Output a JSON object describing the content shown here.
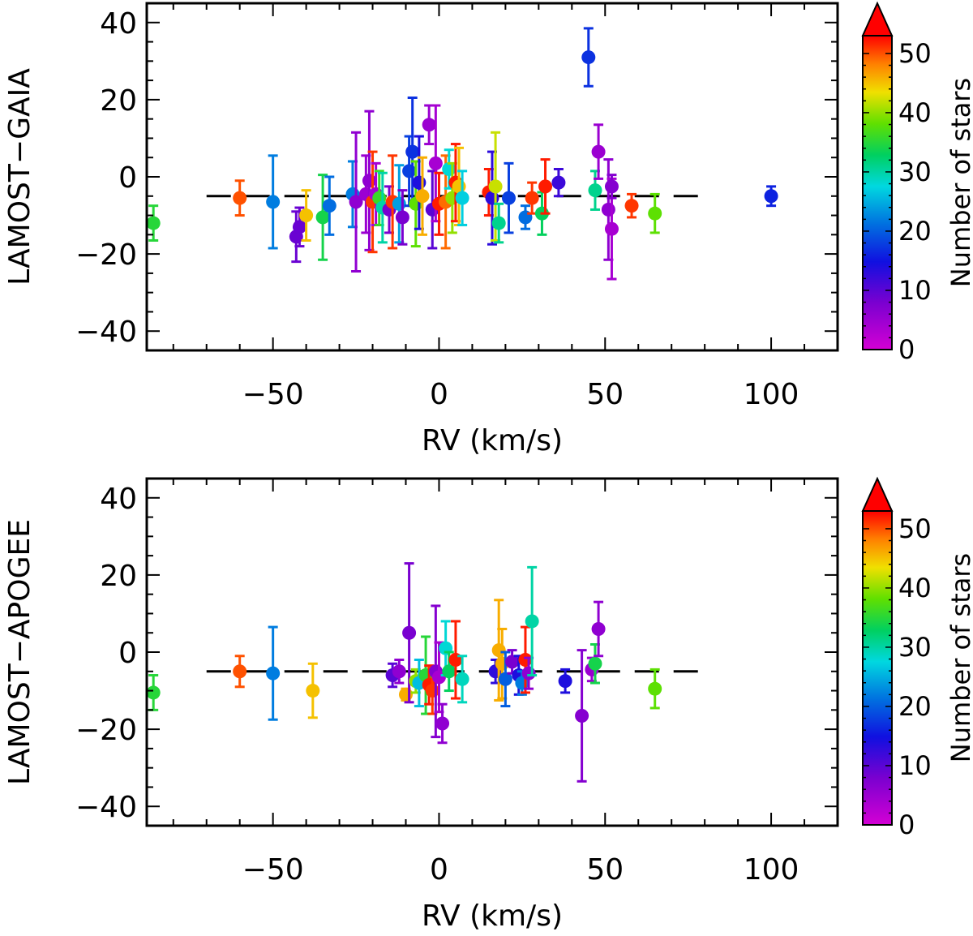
{
  "chart_data": [
    {
      "type": "scatter",
      "xlabel": "RV (km/s)",
      "ylabel": "LAMOST−GAIA",
      "xlim": [
        -88,
        120
      ],
      "ylim": [
        -45,
        45
      ],
      "xticks": [
        -50,
        0,
        50,
        100
      ],
      "xtick_labels": [
        "−50",
        "0",
        "50",
        "100"
      ],
      "yticks": [
        -40,
        -20,
        0,
        20,
        40
      ],
      "ytick_labels": [
        "−40",
        "−20",
        "0",
        "20",
        "40"
      ],
      "reference_line": {
        "y": -5,
        "style": "dashed"
      },
      "colorbar": {
        "label": "Number of stars",
        "range": [
          0,
          53
        ],
        "ticks": [
          0,
          10,
          20,
          30,
          40,
          50
        ],
        "tick_labels": [
          "0",
          "10",
          "20",
          "30",
          "40",
          "50"
        ],
        "extend": "max"
      },
      "points": [
        {
          "x": -86,
          "y": -12,
          "err": 4.5,
          "n": 35
        },
        {
          "x": -60,
          "y": -5.5,
          "err": 4.5,
          "n": 50
        },
        {
          "x": -50,
          "y": -6.5,
          "err": 12,
          "n": 22
        },
        {
          "x": -43,
          "y": -15.5,
          "err": 6.5,
          "n": 9
        },
        {
          "x": -42,
          "y": -13,
          "err": 5,
          "n": 9
        },
        {
          "x": -40,
          "y": -10,
          "err": 6.5,
          "n": 45
        },
        {
          "x": -35,
          "y": -10.5,
          "err": 11,
          "n": 34
        },
        {
          "x": -33,
          "y": -7.5,
          "err": 7.5,
          "n": 21
        },
        {
          "x": -26,
          "y": -4.5,
          "err": 8.5,
          "n": 22
        },
        {
          "x": -25,
          "y": -6.5,
          "err": 18,
          "n": 6
        },
        {
          "x": -22,
          "y": -4.5,
          "err": 10,
          "n": 5
        },
        {
          "x": -21,
          "y": -1,
          "err": 18,
          "n": 6
        },
        {
          "x": -20,
          "y": -6.5,
          "err": 13,
          "n": 51
        },
        {
          "x": -19,
          "y": -4.5,
          "err": 8,
          "n": 4
        },
        {
          "x": -18,
          "y": -5.5,
          "err": 7,
          "n": 36
        },
        {
          "x": -17,
          "y": -8,
          "err": 9,
          "n": 30
        },
        {
          "x": -15,
          "y": -8.5,
          "err": 6,
          "n": 8
        },
        {
          "x": -14,
          "y": -6.5,
          "err": 12,
          "n": 51
        },
        {
          "x": -12,
          "y": -7,
          "err": 10,
          "n": 24
        },
        {
          "x": -11,
          "y": -10.5,
          "err": 7,
          "n": 8
        },
        {
          "x": -9,
          "y": 1.5,
          "err": 9,
          "n": 18
        },
        {
          "x": -8,
          "y": 6.5,
          "err": 14,
          "n": 17
        },
        {
          "x": -7,
          "y": -7,
          "err": 11,
          "n": 38
        },
        {
          "x": -6,
          "y": -1.5,
          "err": 12,
          "n": 14
        },
        {
          "x": -5,
          "y": -5,
          "err": 10,
          "n": 46
        },
        {
          "x": -3,
          "y": 13.5,
          "err": 5,
          "n": 5
        },
        {
          "x": -2,
          "y": -8.5,
          "err": 10,
          "n": 10
        },
        {
          "x": -1,
          "y": 3.5,
          "err": 15,
          "n": 4
        },
        {
          "x": 0,
          "y": -7,
          "err": 8,
          "n": 52
        },
        {
          "x": 2,
          "y": -6.5,
          "err": 12,
          "n": 49
        },
        {
          "x": 3,
          "y": 2,
          "err": 5,
          "n": 28
        },
        {
          "x": 4,
          "y": -5.5,
          "err": 9,
          "n": 40
        },
        {
          "x": 5,
          "y": -1.5,
          "err": 10,
          "n": 52
        },
        {
          "x": 6,
          "y": -2.5,
          "err": 10,
          "n": 45
        },
        {
          "x": 7,
          "y": -5.5,
          "err": 7,
          "n": 27
        },
        {
          "x": 15,
          "y": -4,
          "err": 6,
          "n": 52
        },
        {
          "x": 16,
          "y": -5.5,
          "err": 12,
          "n": 13
        },
        {
          "x": 17,
          "y": -2.5,
          "err": 14,
          "n": 42
        },
        {
          "x": 18,
          "y": -12,
          "err": 5,
          "n": 31
        },
        {
          "x": 21,
          "y": -5.5,
          "err": 9,
          "n": 18
        },
        {
          "x": 26,
          "y": -10.5,
          "err": 3,
          "n": 21
        },
        {
          "x": 28,
          "y": -5.5,
          "err": 4,
          "n": 51
        },
        {
          "x": 31,
          "y": -9.5,
          "err": 5.5,
          "n": 33
        },
        {
          "x": 32,
          "y": -2.5,
          "err": 7,
          "n": 52
        },
        {
          "x": 36,
          "y": -1.5,
          "err": 3.5,
          "n": 12
        },
        {
          "x": 45,
          "y": 31,
          "err": 7.5,
          "n": 17
        },
        {
          "x": 47,
          "y": -3.5,
          "err": 5,
          "n": 31
        },
        {
          "x": 48,
          "y": 6.5,
          "err": 7,
          "n": 5
        },
        {
          "x": 51,
          "y": -8.5,
          "err": 13,
          "n": 6
        },
        {
          "x": 52,
          "y": -13.5,
          "err": 13,
          "n": 4
        },
        {
          "x": 52,
          "y": -2.5,
          "err": 3,
          "n": 7
        },
        {
          "x": 58,
          "y": -7.5,
          "err": 3,
          "n": 51
        },
        {
          "x": 65,
          "y": -9.5,
          "err": 5,
          "n": 38
        },
        {
          "x": 100,
          "y": -5,
          "err": 2.5,
          "n": 16
        }
      ]
    },
    {
      "type": "scatter",
      "xlabel": "RV (km/s)",
      "ylabel": "LAMOST−APOGEE",
      "xlim": [
        -88,
        120
      ],
      "ylim": [
        -45,
        45
      ],
      "xticks": [
        -50,
        0,
        50,
        100
      ],
      "xtick_labels": [
        "−50",
        "0",
        "50",
        "100"
      ],
      "yticks": [
        -40,
        -20,
        0,
        20,
        40
      ],
      "ytick_labels": [
        "−40",
        "−20",
        "0",
        "20",
        "40"
      ],
      "reference_line": {
        "y": -5,
        "style": "dashed"
      },
      "colorbar": {
        "label": "Number of stars",
        "range": [
          0,
          53
        ],
        "ticks": [
          0,
          10,
          20,
          30,
          40,
          50
        ],
        "tick_labels": [
          "0",
          "10",
          "20",
          "30",
          "40",
          "50"
        ],
        "extend": "max"
      },
      "points": [
        {
          "x": -86,
          "y": -10.5,
          "err": 4.5,
          "n": 35
        },
        {
          "x": -60,
          "y": -5,
          "err": 4,
          "n": 50
        },
        {
          "x": -50,
          "y": -5.5,
          "err": 12,
          "n": 22
        },
        {
          "x": -38,
          "y": -10,
          "err": 7,
          "n": 45
        },
        {
          "x": -14,
          "y": -6,
          "err": 3,
          "n": 10
        },
        {
          "x": -12,
          "y": -5,
          "err": 3,
          "n": 6
        },
        {
          "x": -10,
          "y": -11,
          "err": 1.5,
          "n": 46
        },
        {
          "x": -9,
          "y": 5,
          "err": 18,
          "n": 8
        },
        {
          "x": -7,
          "y": -7.5,
          "err": 3,
          "n": 40
        },
        {
          "x": -6,
          "y": -8,
          "err": 6,
          "n": 26
        },
        {
          "x": -4,
          "y": -6,
          "err": 10,
          "n": 35
        },
        {
          "x": -3,
          "y": -8.5,
          "err": 5,
          "n": 52
        },
        {
          "x": -2,
          "y": -10,
          "err": 6,
          "n": 51
        },
        {
          "x": -1,
          "y": -5,
          "err": 17,
          "n": 7
        },
        {
          "x": 0,
          "y": -6.5,
          "err": 9,
          "n": 4
        },
        {
          "x": 1,
          "y": -18.5,
          "err": 5,
          "n": 6
        },
        {
          "x": 2,
          "y": 1,
          "err": 7,
          "n": 28
        },
        {
          "x": 3,
          "y": -5,
          "err": 5,
          "n": 33
        },
        {
          "x": 5,
          "y": -2,
          "err": 10,
          "n": 52
        },
        {
          "x": 7,
          "y": -7,
          "err": 6,
          "n": 29
        },
        {
          "x": 17,
          "y": -5,
          "err": 3,
          "n": 13
        },
        {
          "x": 18,
          "y": 0.5,
          "err": 13,
          "n": 46
        },
        {
          "x": 19,
          "y": -3,
          "err": 9,
          "n": 46
        },
        {
          "x": 20,
          "y": -7,
          "err": 7,
          "n": 20
        },
        {
          "x": 22,
          "y": -2.5,
          "err": 3,
          "n": 8
        },
        {
          "x": 24,
          "y": -6,
          "err": 5,
          "n": 14
        },
        {
          "x": 25,
          "y": -8,
          "err": 3,
          "n": 22
        },
        {
          "x": 26,
          "y": -2,
          "err": 8.5,
          "n": 52
        },
        {
          "x": 27,
          "y": -5.5,
          "err": 4,
          "n": 6
        },
        {
          "x": 28,
          "y": 8,
          "err": 14,
          "n": 30
        },
        {
          "x": 38,
          "y": -7.5,
          "err": 3,
          "n": 14
        },
        {
          "x": 43,
          "y": -16.5,
          "err": 17,
          "n": 7
        },
        {
          "x": 46,
          "y": -4.5,
          "err": 3,
          "n": 5
        },
        {
          "x": 47,
          "y": -3,
          "err": 5,
          "n": 34
        },
        {
          "x": 48,
          "y": 6,
          "err": 7,
          "n": 6
        },
        {
          "x": 65,
          "y": -9.5,
          "err": 5,
          "n": 38
        }
      ]
    }
  ]
}
